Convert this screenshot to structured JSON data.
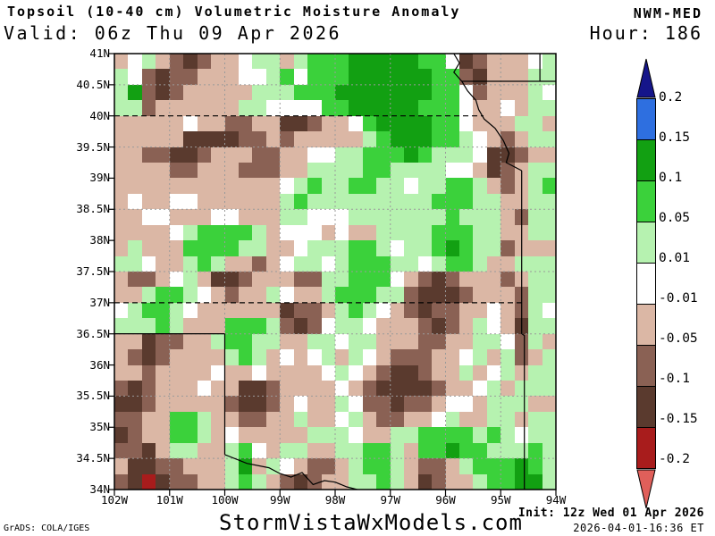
{
  "header": {
    "title": "Topsoil (10-40 cm) Volumetric Moisture Anomaly",
    "valid": "Valid: 06z Thu 09 Apr 2026",
    "model": "NWM-MED",
    "hour": "Hour: 186"
  },
  "axes": {
    "lat_labels": [
      "41N",
      "40.5N",
      "40N",
      "39.5N",
      "39N",
      "38.5N",
      "38N",
      "37.5N",
      "37N",
      "36.5N",
      "36N",
      "35.5N",
      "35N",
      "34.5N",
      "34N"
    ],
    "lon_labels": [
      "102W",
      "101W",
      "100W",
      "99W",
      "98W",
      "97W",
      "96W",
      "95W",
      "94W"
    ]
  },
  "colorbar": {
    "labels": [
      "0.2",
      "0.15",
      "0.1",
      "0.05",
      "0.01",
      "-0.01",
      "-0.05",
      "-0.1",
      "-0.15",
      "-0.2"
    ],
    "segment_colors": [
      "#2e6fe0",
      "#12a012",
      "#3bd13b",
      "#b6f2b0",
      "#ffffff",
      "#dbb7a5",
      "#8a6154",
      "#5a3a2e",
      "#a81c1c"
    ],
    "arrow_top_color": "#15158a",
    "arrow_bottom_color": "#e05f5a"
  },
  "map": {
    "palette": {
      "t": "#dbb7a5",
      "w": "#ffffff",
      "l": "#b6f2b0",
      "g": "#3bd13b",
      "d": "#12a012",
      "b": "#8a6154",
      "k": "#5a3a2e",
      "r": "#a81c1c"
    },
    "rows": [
      "twltbkbttwlltlgggdddddggwkbtttwl",
      "lwbkbbtttwwlgwgggddddddggbktttll",
      "ldbkbtttttlllgggdddddddggwbtttlw",
      "llbttttttllwwwwggdddddgggwttwtll",
      "tttttwttbbttkkbttwgddddggwtttllt",
      "tttttkkkkbbtbtttttlgdddgglwtbtll",
      "ttbbkkbtttbbttwwllgggdglllwkkbtt",
      "ttttbbtttbbbttllllggllllwwtkbtll",
      "ttttttttttttwlgllggllwllggltbtlg",
      "twttwwttttttlglllllllllgggllttll",
      "ttwwtttwwtttllwwwlllllllgllltbll",
      "ttttwlggggltwwwtwttllllgggllttll",
      "tltttggggllttwlllgglwllgdgllbttt",
      "llwttlglttbtwllwlgggllwlgglttlll",
      "tbbtwltkkbtttbbllgggwtbkbtttbtll",
      "ttlgglwtbttlwttlgggllbkkkbtttbll",
      "wlgglwttttttkbbtlglwtbkbbttwtblw",
      "lllgltttggglbkbwllwtttbkbtlwtkll",
      "ttkbbttlggllttllwlltttbbttllwblt",
      "tbkbttttlgltwtwltlwtbbbttwltlbtl",
      "ttbttttwttwttttwlwtbkkbttltwltll",
      "bkbtttwttkkbttttwtbkkkkbttwltlll",
      "kkbtttttbkkbtwttlwbbkbbtwwtllltt",
      "bbttgglttbbttlttwltbbttwlttlltll",
      "kbttggltwtttttlllwttllgggglglwll",
      "bbktllttlgwtllttllggltggdgglllgl",
      "tkkbbtttldtlwtbbtlggltbbtlgggdgl",
      "bkrkbbttlgltbkbttllgltkbttlggddl"
    ]
  },
  "footer": {
    "credit": "GrADS: COLA/IGES",
    "site": "StormVistaWxModels.com",
    "init": "Init: 12z Wed 01 Apr 2026",
    "generated": "2026-04-01-16:36 ET"
  }
}
